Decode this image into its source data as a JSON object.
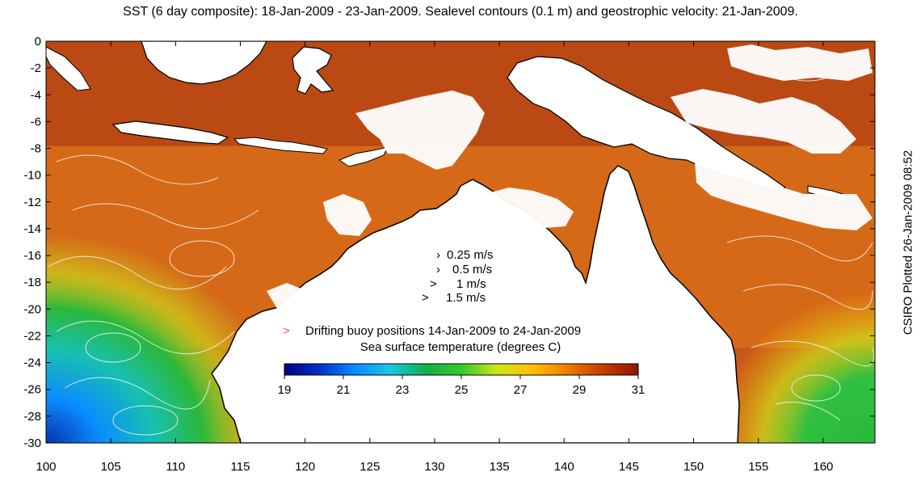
{
  "title": "SST (6 day composite): 18-Jan-2009 - 23-Jan-2009. Sealevel contours (0.1 m) and geostrophic velocity: 21-Jan-2009.",
  "credit": "CSIRO Plotted 26-Jan-2009 08:52",
  "axes": {
    "x_ticks": [
      "100",
      "105",
      "110",
      "115",
      "120",
      "125",
      "130",
      "135",
      "140",
      "145",
      "150",
      "155",
      "160"
    ],
    "y_ticks": [
      "0",
      "-2",
      "-4",
      "-6",
      "-8",
      "-10",
      "-12",
      "-14",
      "-16",
      "-18",
      "-20",
      "-22",
      "-24",
      "-26",
      "-28",
      "-30"
    ],
    "lon_range": [
      100,
      164
    ],
    "lat_range": [
      -30,
      0
    ]
  },
  "velocity_legend": [
    "0.25 m/s",
    "0.5 m/s",
    "1 m/s",
    "1.5 m/s"
  ],
  "buoy_legend": {
    "symbol": ">",
    "label": "Drifting buoy positions 14-Jan-2009 to 24-Jan-2009",
    "color": "#e040e0"
  },
  "colorbar": {
    "label": "Sea surface temperature (degrees C)",
    "ticks": [
      "19",
      "21",
      "23",
      "25",
      "27",
      "29",
      "31"
    ],
    "range": [
      19,
      31
    ],
    "colors": [
      "#00007f",
      "#0033cc",
      "#0a8cff",
      "#17c9e0",
      "#10b04a",
      "#35c82a",
      "#cde61a",
      "#ffc000",
      "#f07a00",
      "#c83a00",
      "#8c1800"
    ]
  },
  "colors": {
    "land": "#ffffff",
    "coast": "#000000",
    "contours": "#f4f4f4",
    "warm_ocean": "#c8561a",
    "cool_ocean": "#1aa84a"
  }
}
